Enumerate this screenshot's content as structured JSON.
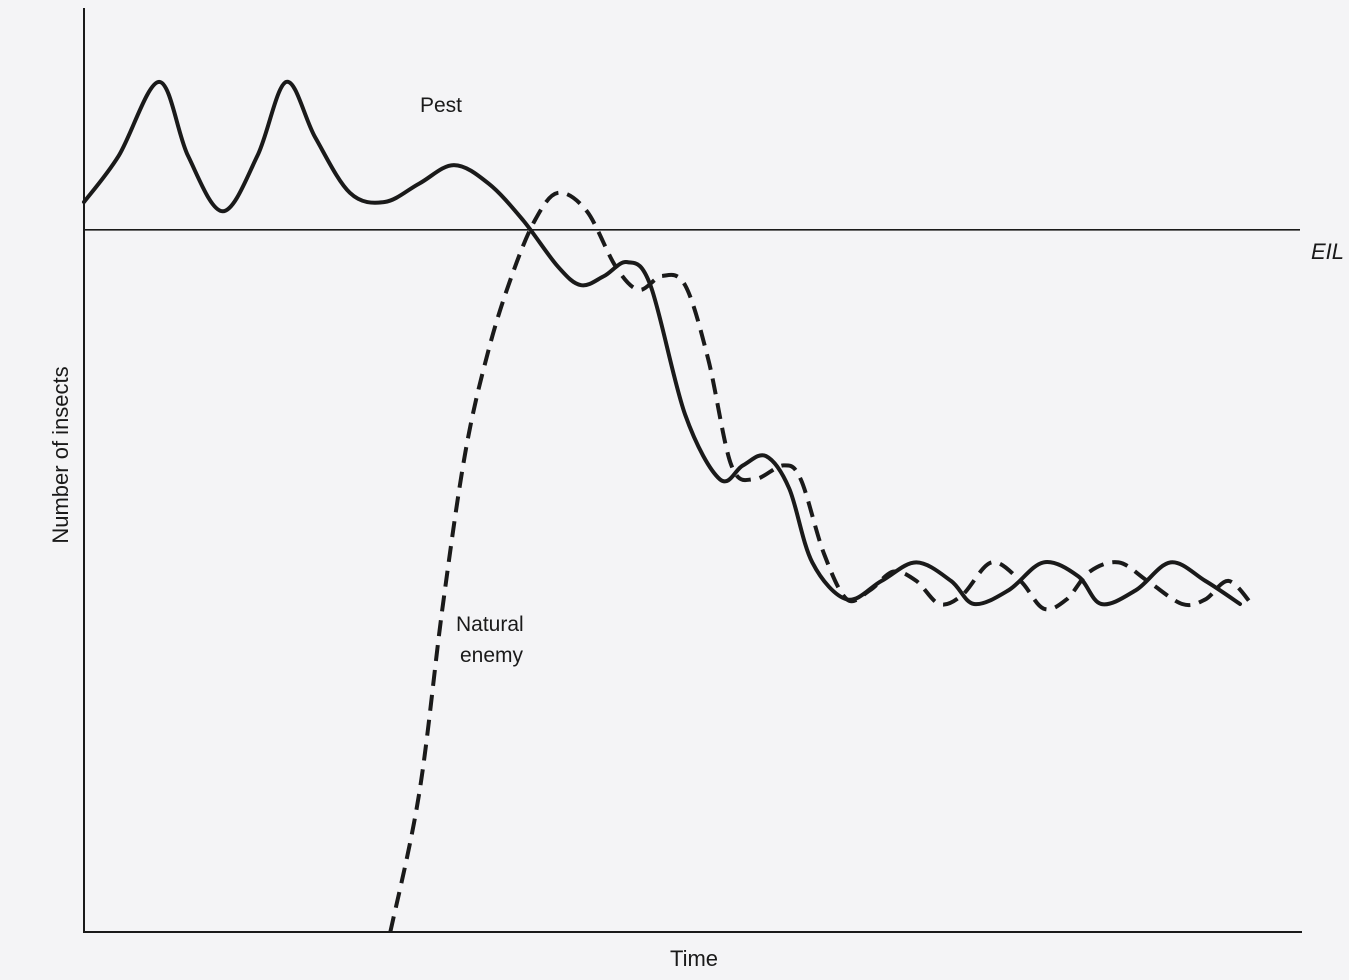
{
  "chart_data": {
    "type": "line",
    "title": "",
    "xlabel": "Time",
    "ylabel": "Number of insects",
    "xlim": [
      0,
      100
    ],
    "ylim": [
      0,
      100
    ],
    "grid": false,
    "reference_lines": [
      {
        "label": "EIL",
        "y": 76
      }
    ],
    "series": [
      {
        "name": "Pest",
        "style": "solid",
        "points": [
          [
            0,
            79
          ],
          [
            3,
            84
          ],
          [
            6.5,
            92
          ],
          [
            9,
            84
          ],
          [
            12,
            78
          ],
          [
            15,
            84
          ],
          [
            17.5,
            92
          ],
          [
            20,
            86
          ],
          [
            23,
            80
          ],
          [
            26,
            79
          ],
          [
            29,
            81
          ],
          [
            32,
            83
          ],
          [
            35,
            81
          ],
          [
            38,
            77
          ],
          [
            41,
            72
          ],
          [
            43,
            70
          ],
          [
            45,
            71
          ],
          [
            47,
            72.5
          ],
          [
            49,
            70
          ],
          [
            52,
            56
          ],
          [
            55,
            49
          ],
          [
            57,
            50.5
          ],
          [
            59,
            51.5
          ],
          [
            61,
            48
          ],
          [
            63,
            40
          ],
          [
            66,
            36
          ],
          [
            69,
            38
          ],
          [
            72,
            40
          ],
          [
            75,
            38
          ],
          [
            77,
            35.5
          ],
          [
            80,
            37
          ],
          [
            83,
            40
          ],
          [
            86,
            38.5
          ],
          [
            88,
            35.5
          ],
          [
            91,
            37
          ],
          [
            94,
            40
          ],
          [
            97,
            38
          ],
          [
            100,
            35.5
          ]
        ]
      },
      {
        "name": "Natural enemy",
        "style": "dashed",
        "points": [
          [
            26.5,
            0
          ],
          [
            29,
            15
          ],
          [
            31,
            35
          ],
          [
            33,
            52
          ],
          [
            35,
            63
          ],
          [
            37,
            71
          ],
          [
            39,
            77
          ],
          [
            41,
            80
          ],
          [
            43.5,
            78
          ],
          [
            46,
            72
          ],
          [
            48,
            69.5
          ],
          [
            50,
            71
          ],
          [
            52,
            70
          ],
          [
            54,
            62
          ],
          [
            56,
            50.5
          ],
          [
            58,
            49
          ],
          [
            60.5,
            50.5
          ],
          [
            62,
            49
          ],
          [
            64,
            41
          ],
          [
            66,
            36
          ],
          [
            68,
            37
          ],
          [
            70,
            39
          ],
          [
            72,
            38
          ],
          [
            74,
            35.5
          ],
          [
            76,
            36.5
          ],
          [
            78.5,
            40
          ],
          [
            81,
            38
          ],
          [
            83,
            35
          ],
          [
            85,
            36
          ],
          [
            87,
            39
          ],
          [
            89.5,
            40
          ],
          [
            92,
            38
          ],
          [
            95,
            35.5
          ],
          [
            97,
            36
          ],
          [
            99,
            38
          ],
          [
            101,
            35.5
          ]
        ]
      }
    ],
    "annotations": [
      {
        "text": "Pest"
      },
      {
        "text": "Natural\nenemy"
      }
    ]
  },
  "labels": {
    "pest": "Pest",
    "enemy_line1": "Natural",
    "enemy_line2": "enemy",
    "eil": "EIL",
    "xlabel": "Time",
    "ylabel": "Number of insects"
  }
}
